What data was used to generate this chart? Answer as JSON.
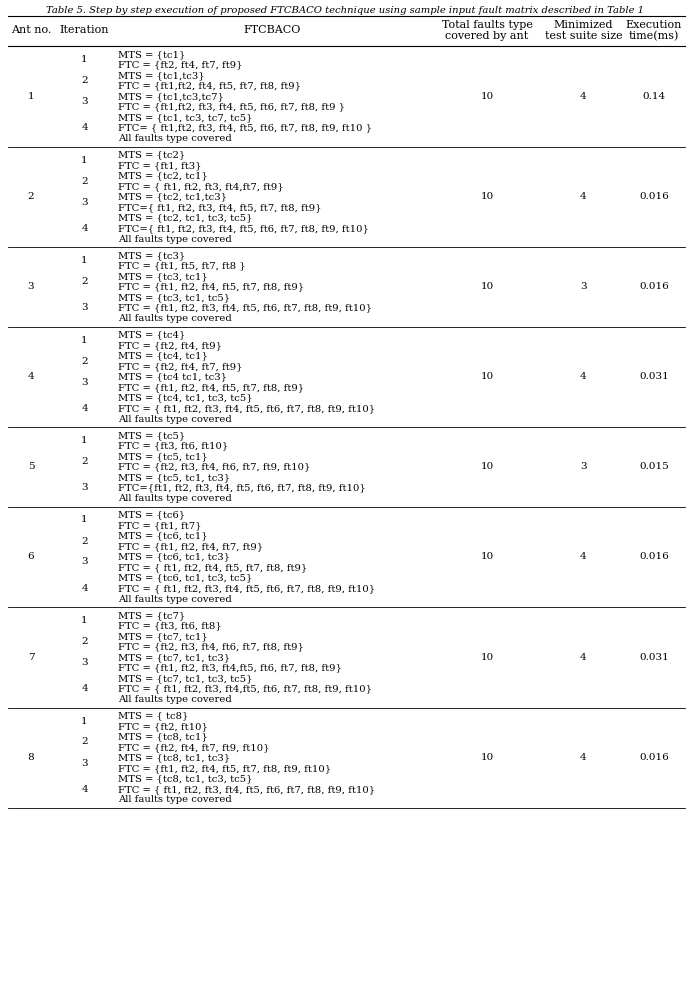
{
  "title": "Table 5. Step by step execution of proposed FTCBACO technique using sample input fault matrix described in Table 1",
  "headers_line1": [
    "Ant no.",
    "Iteration",
    "FTCBACO",
    "Total faults type",
    "Minimized",
    "Execution"
  ],
  "headers_line2": [
    "",
    "",
    "",
    "covered by ant",
    "test suite size",
    "time(ms)"
  ],
  "ants": [
    {
      "ant_no": "1",
      "total_faults": "10",
      "min_suite": "4",
      "exec_time": "0.14",
      "iterations": [
        {
          "iter": "1",
          "lines": [
            "MTS = {tc1}",
            "FTC = {ft2, ft4, ft7, ft9}"
          ]
        },
        {
          "iter": "2",
          "lines": [
            "MTS = {tc1,tc3}",
            "FTC = {ft1,ft2, ft4, ft5, ft7, ft8, ft9}"
          ]
        },
        {
          "iter": "3",
          "lines": [
            "MTS = {tc1,tc3,tc7}",
            "FTC = {ft1,ft2, ft3, ft4, ft5, ft6, ft7, ft8, ft9 }"
          ]
        },
        {
          "iter": "4",
          "lines": [
            "MTS = {tc1, tc3, tc7, tc5}",
            "FTC= { ft1,ft2, ft3, ft4, ft5, ft6, ft7, ft8, ft9, ft10 }",
            "All faults type covered"
          ]
        }
      ]
    },
    {
      "ant_no": "2",
      "total_faults": "10",
      "min_suite": "4",
      "exec_time": "0.016",
      "iterations": [
        {
          "iter": "1",
          "lines": [
            "MTS = {tc2}",
            "FTC = {ft1, ft3}"
          ]
        },
        {
          "iter": "2",
          "lines": [
            "MTS = {tc2, tc1}",
            "FTC = { ft1, ft2, ft3, ft4,ft7, ft9}"
          ]
        },
        {
          "iter": "3",
          "lines": [
            "MTS = {tc2, tc1,tc3}",
            "FTC={ ft1, ft2, ft3, ft4, ft5, ft7, ft8, ft9}"
          ]
        },
        {
          "iter": "4",
          "lines": [
            "MTS = {tc2, tc1, tc3, tc5}",
            "FTC={ ft1, ft2, ft3, ft4, ft5, ft6, ft7, ft8, ft9, ft10}",
            "All faults type covered"
          ]
        }
      ]
    },
    {
      "ant_no": "3",
      "total_faults": "10",
      "min_suite": "3",
      "exec_time": "0.016",
      "iterations": [
        {
          "iter": "1",
          "lines": [
            "MTS = {tc3}",
            "FTC = {ft1, ft5, ft7, ft8 }"
          ]
        },
        {
          "iter": "2",
          "lines": [
            "MTS = {tc3, tc1}",
            "FTC = {ft1, ft2, ft4, ft5, ft7, ft8, ft9}"
          ]
        },
        {
          "iter": "3",
          "lines": [
            "MTS = {tc3, tc1, tc5}",
            "FTC = {ft1, ft2, ft3, ft4, ft5, ft6, ft7, ft8, ft9, ft10}",
            "All faults type covered"
          ]
        }
      ]
    },
    {
      "ant_no": "4",
      "total_faults": "10",
      "min_suite": "4",
      "exec_time": "0.031",
      "iterations": [
        {
          "iter": "1",
          "lines": [
            "MTS = {tc4}",
            "FTC = {ft2, ft4, ft9}"
          ]
        },
        {
          "iter": "2",
          "lines": [
            "MTS = {tc4, tc1}",
            "FTC = {ft2, ft4, ft7, ft9}"
          ]
        },
        {
          "iter": "3",
          "lines": [
            "MTS = {tc4 tc1, tc3}",
            "FTC = {ft1, ft2, ft4, ft5, ft7, ft8, ft9}"
          ]
        },
        {
          "iter": "4",
          "lines": [
            "MTS = {tc4, tc1, tc3, tc5}",
            "FTC = { ft1, ft2, ft3, ft4, ft5, ft6, ft7, ft8, ft9, ft10}",
            "All faults type covered"
          ]
        }
      ]
    },
    {
      "ant_no": "5",
      "total_faults": "10",
      "min_suite": "3",
      "exec_time": "0.015",
      "iterations": [
        {
          "iter": "1",
          "lines": [
            "MTS = {tc5}",
            "FTC = {ft3, ft6, ft10}"
          ]
        },
        {
          "iter": "2",
          "lines": [
            "MTS = {tc5, tc1}",
            "FTC = {ft2, ft3, ft4, ft6, ft7, ft9, ft10}"
          ]
        },
        {
          "iter": "3",
          "lines": [
            "MTS = {tc5, tc1, tc3}",
            "FTC={ft1, ft2, ft3, ft4, ft5, ft6, ft7, ft8, ft9, ft10}",
            "All faults type covered"
          ]
        }
      ]
    },
    {
      "ant_no": "6",
      "total_faults": "10",
      "min_suite": "4",
      "exec_time": "0.016",
      "iterations": [
        {
          "iter": "1",
          "lines": [
            "MTS = {tc6}",
            "FTC = {ft1, ft7}"
          ]
        },
        {
          "iter": "2",
          "lines": [
            "MTS = {tc6, tc1}",
            "FTC = {ft1, ft2, ft4, ft7, ft9}"
          ]
        },
        {
          "iter": "3",
          "lines": [
            "MTS = {tc6, tc1, tc3}",
            "FTC = { ft1, ft2, ft4, ft5, ft7, ft8, ft9}"
          ]
        },
        {
          "iter": "4",
          "lines": [
            "MTS = {tc6, tc1, tc3, tc5}",
            "FTC = { ft1, ft2, ft3, ft4, ft5, ft6, ft7, ft8, ft9, ft10}",
            "All faults type covered"
          ]
        }
      ]
    },
    {
      "ant_no": "7",
      "total_faults": "10",
      "min_suite": "4",
      "exec_time": "0.031",
      "iterations": [
        {
          "iter": "1",
          "lines": [
            "MTS = {tc7}",
            "FTC = {ft3, ft6, ft8}"
          ]
        },
        {
          "iter": "2",
          "lines": [
            "MTS = {tc7, tc1}",
            "FTC = {ft2, ft3, ft4, ft6, ft7, ft8, ft9}"
          ]
        },
        {
          "iter": "3",
          "lines": [
            "MTS = {tc7, tc1, tc3}",
            "FTC = {ft1, ft2, ft3, ft4,ft5, ft6, ft7, ft8, ft9}"
          ]
        },
        {
          "iter": "4",
          "lines": [
            "MTS = {tc7, tc1, tc3, tc5}",
            "FTC = { ft1, ft2, ft3, ft4,ft5, ft6, ft7, ft8, ft9, ft10}",
            "All faults type covered"
          ]
        }
      ]
    },
    {
      "ant_no": "8",
      "total_faults": "10",
      "min_suite": "4",
      "exec_time": "0.016",
      "iterations": [
        {
          "iter": "1",
          "lines": [
            "MTS = { tc8}",
            "FTC = {ft2, ft10}"
          ]
        },
        {
          "iter": "2",
          "lines": [
            "MTS = {tc8, tc1}",
            "FTC = {ft2, ft4, ft7, ft9, ft10}"
          ]
        },
        {
          "iter": "3",
          "lines": [
            "MTS = {tc8, tc1, tc3}",
            "FTC = {ft1, ft2, ft4, ft5, ft7, ft8, ft9, ft10}"
          ]
        },
        {
          "iter": "4",
          "lines": [
            "MTS = {tc8, tc1, tc3, tc5}",
            "FTC = { ft1, ft2, ft3, ft4, ft5, ft6, ft7, ft8, ft9, ft10}",
            "All faults type covered"
          ]
        }
      ]
    }
  ],
  "bg_color": "#ffffff",
  "text_color": "#000000",
  "title_fontsize": 7.2,
  "header_fontsize": 8.0,
  "cell_fontsize": 7.2,
  "iter_fontsize": 7.5
}
